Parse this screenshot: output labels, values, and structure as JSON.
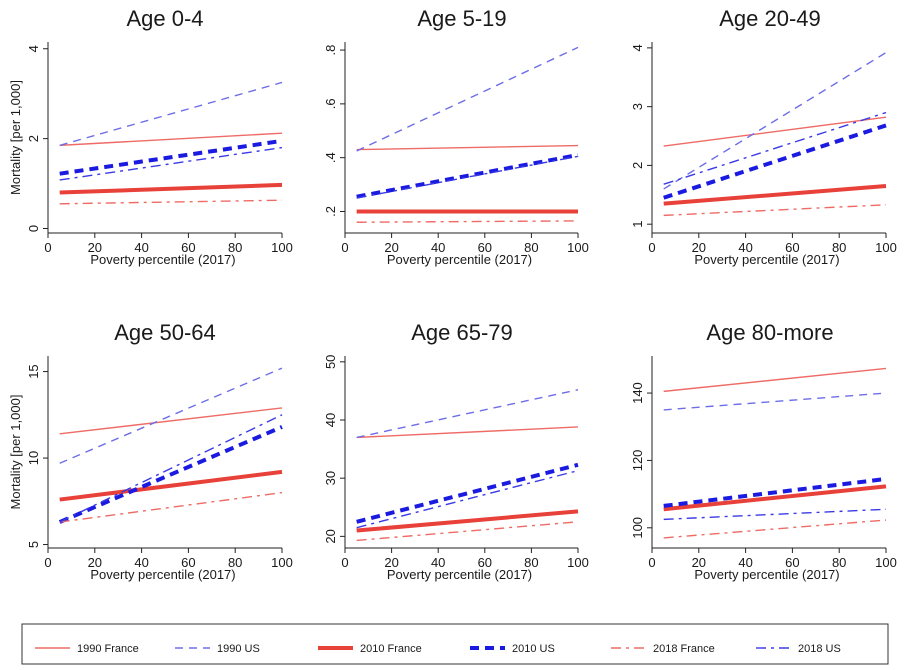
{
  "legend": [
    {
      "label": "1990 France",
      "color": "#ee6b66",
      "dash": "solid",
      "weight": "thin"
    },
    {
      "label": "1990 US",
      "color": "#6d6de8",
      "dash": "dash",
      "weight": "thin"
    },
    {
      "label": "2010 France",
      "color": "#e8413a",
      "dash": "solid",
      "weight": "thick"
    },
    {
      "label": "2010 US",
      "color": "#1a1ae0",
      "dash": "dash",
      "weight": "thick"
    },
    {
      "label": "2018 France",
      "color": "#ee6b66",
      "dash": "dashdot",
      "weight": "thin"
    },
    {
      "label": "2018 US",
      "color": "#3a3ae6",
      "dash": "dashdot",
      "weight": "thin"
    }
  ],
  "chart_data": [
    {
      "type": "line",
      "title": "Age 0-4",
      "xlabel": "Poverty percentile (2017)",
      "ylabel": "Mortality [per 1,000]",
      "xlim": [
        0,
        100
      ],
      "ylim": [
        -0.1,
        4.15
      ],
      "xticks": [
        "0",
        "20",
        "40",
        "60",
        "80",
        "100"
      ],
      "yticks": [
        {
          "v": 0,
          "label": "0"
        },
        {
          "v": 2,
          "label": "2"
        },
        {
          "v": 4,
          "label": "4"
        }
      ],
      "series": [
        {
          "name": "1990 France",
          "x": [
            5,
            100
          ],
          "y": [
            1.85,
            2.12
          ]
        },
        {
          "name": "1990 US",
          "x": [
            5,
            100
          ],
          "y": [
            1.85,
            3.25
          ]
        },
        {
          "name": "2010 France",
          "x": [
            5,
            100
          ],
          "y": [
            0.8,
            0.97
          ]
        },
        {
          "name": "2010 US",
          "x": [
            5,
            100
          ],
          "y": [
            1.22,
            1.95
          ]
        },
        {
          "name": "2018 France",
          "x": [
            5,
            100
          ],
          "y": [
            0.55,
            0.63
          ]
        },
        {
          "name": "2018 US",
          "x": [
            5,
            100
          ],
          "y": [
            1.08,
            1.8
          ]
        }
      ]
    },
    {
      "type": "line",
      "title": "Age 5-19",
      "xlabel": "Poverty percentile (2017)",
      "ylabel": "",
      "xlim": [
        0,
        100
      ],
      "ylim": [
        0.12,
        0.83
      ],
      "xticks": [
        "0",
        "20",
        "40",
        "60",
        "80",
        "100"
      ],
      "yticks": [
        {
          "v": 0.2,
          "label": ".2"
        },
        {
          "v": 0.4,
          "label": ".4"
        },
        {
          "v": 0.6,
          "label": ".6"
        },
        {
          "v": 0.8,
          "label": ".8"
        }
      ],
      "series": [
        {
          "name": "1990 France",
          "x": [
            5,
            100
          ],
          "y": [
            0.43,
            0.445
          ]
        },
        {
          "name": "1990 US",
          "x": [
            5,
            100
          ],
          "y": [
            0.425,
            0.81
          ]
        },
        {
          "name": "2010 France",
          "x": [
            5,
            100
          ],
          "y": [
            0.2,
            0.2
          ]
        },
        {
          "name": "2010 US",
          "x": [
            5,
            100
          ],
          "y": [
            0.255,
            0.41
          ]
        },
        {
          "name": "2018 France",
          "x": [
            5,
            100
          ],
          "y": [
            0.16,
            0.165
          ]
        },
        {
          "name": "2018 US",
          "x": [
            5,
            100
          ],
          "y": [
            0.25,
            0.405
          ]
        }
      ]
    },
    {
      "type": "line",
      "title": "Age 20-49",
      "xlabel": "Poverty percentile (2017)",
      "ylabel": "",
      "xlim": [
        0,
        100
      ],
      "ylim": [
        0.85,
        4.1
      ],
      "xticks": [
        "0",
        "20",
        "40",
        "60",
        "80",
        "100"
      ],
      "yticks": [
        {
          "v": 1,
          "label": "1"
        },
        {
          "v": 2,
          "label": "2"
        },
        {
          "v": 3,
          "label": "3"
        },
        {
          "v": 4,
          "label": "4"
        }
      ],
      "series": [
        {
          "name": "1990 France",
          "x": [
            5,
            100
          ],
          "y": [
            2.33,
            2.82
          ]
        },
        {
          "name": "1990 US",
          "x": [
            5,
            100
          ],
          "y": [
            1.6,
            3.92
          ]
        },
        {
          "name": "2010 France",
          "x": [
            5,
            100
          ],
          "y": [
            1.35,
            1.65
          ]
        },
        {
          "name": "2010 US",
          "x": [
            5,
            100
          ],
          "y": [
            1.45,
            2.68
          ]
        },
        {
          "name": "2018 France",
          "x": [
            5,
            100
          ],
          "y": [
            1.15,
            1.33
          ]
        },
        {
          "name": "2018 US",
          "x": [
            5,
            100
          ],
          "y": [
            1.68,
            2.9
          ]
        }
      ]
    },
    {
      "type": "line",
      "title": "Age 50-64",
      "xlabel": "Poverty percentile (2017)",
      "ylabel": "Mortality [per 1,000]",
      "xlim": [
        0,
        100
      ],
      "ylim": [
        4.8,
        15.9
      ],
      "xticks": [
        "0",
        "20",
        "40",
        "60",
        "80",
        "100"
      ],
      "yticks": [
        {
          "v": 5,
          "label": "5"
        },
        {
          "v": 10,
          "label": "10"
        },
        {
          "v": 15,
          "label": "15"
        }
      ],
      "series": [
        {
          "name": "1990 France",
          "x": [
            5,
            100
          ],
          "y": [
            11.4,
            12.9
          ]
        },
        {
          "name": "1990 US",
          "x": [
            5,
            100
          ],
          "y": [
            9.7,
            15.2
          ]
        },
        {
          "name": "2010 France",
          "x": [
            5,
            100
          ],
          "y": [
            7.6,
            9.2
          ]
        },
        {
          "name": "2010 US",
          "x": [
            5,
            100
          ],
          "y": [
            6.3,
            11.8
          ]
        },
        {
          "name": "2018 France",
          "x": [
            5,
            100
          ],
          "y": [
            6.3,
            8.0
          ]
        },
        {
          "name": "2018 US",
          "x": [
            5,
            100
          ],
          "y": [
            6.3,
            12.5
          ]
        }
      ]
    },
    {
      "type": "line",
      "title": "Age 65-79",
      "xlabel": "Poverty percentile (2017)",
      "ylabel": "",
      "xlim": [
        0,
        100
      ],
      "ylim": [
        18,
        51
      ],
      "xticks": [
        "0",
        "20",
        "40",
        "60",
        "80",
        "100"
      ],
      "yticks": [
        {
          "v": 20,
          "label": "20"
        },
        {
          "v": 30,
          "label": "30"
        },
        {
          "v": 40,
          "label": "40"
        },
        {
          "v": 50,
          "label": "50"
        }
      ],
      "series": [
        {
          "name": "1990 France",
          "x": [
            5,
            100
          ],
          "y": [
            37,
            38.8
          ]
        },
        {
          "name": "1990 US",
          "x": [
            5,
            100
          ],
          "y": [
            37,
            45.2
          ]
        },
        {
          "name": "2010 France",
          "x": [
            5,
            100
          ],
          "y": [
            21,
            24.3
          ]
        },
        {
          "name": "2010 US",
          "x": [
            5,
            100
          ],
          "y": [
            22.5,
            32.3
          ]
        },
        {
          "name": "2018 France",
          "x": [
            5,
            100
          ],
          "y": [
            19.3,
            22.5
          ]
        },
        {
          "name": "2018 US",
          "x": [
            5,
            100
          ],
          "y": [
            21.5,
            31.3
          ]
        }
      ]
    },
    {
      "type": "line",
      "title": "Age 80-more",
      "xlabel": "Poverty percentile (2017)",
      "ylabel": "",
      "xlim": [
        0,
        100
      ],
      "ylim": [
        94,
        151
      ],
      "xticks": [
        "0",
        "20",
        "40",
        "60",
        "80",
        "100"
      ],
      "yticks": [
        {
          "v": 100,
          "label": "100"
        },
        {
          "v": 120,
          "label": "120"
        },
        {
          "v": 140,
          "label": "140"
        }
      ],
      "series": [
        {
          "name": "1990 France",
          "x": [
            5,
            100
          ],
          "y": [
            140.5,
            147.3
          ]
        },
        {
          "name": "1990 US",
          "x": [
            5,
            100
          ],
          "y": [
            135,
            140
          ]
        },
        {
          "name": "2010 France",
          "x": [
            5,
            100
          ],
          "y": [
            105.5,
            112.3
          ]
        },
        {
          "name": "2010 US",
          "x": [
            5,
            100
          ],
          "y": [
            106.5,
            114.5
          ]
        },
        {
          "name": "2018 France",
          "x": [
            5,
            100
          ],
          "y": [
            97,
            102.3
          ]
        },
        {
          "name": "2018 US",
          "x": [
            5,
            100
          ],
          "y": [
            102.5,
            105.5
          ]
        }
      ]
    }
  ]
}
